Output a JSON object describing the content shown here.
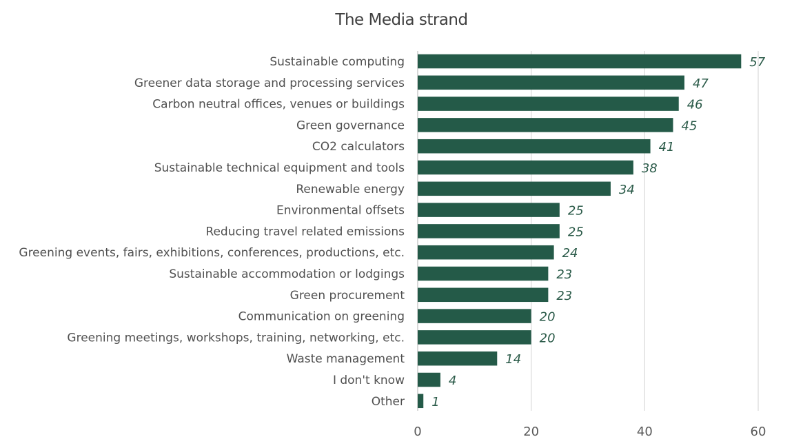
{
  "chart_data": {
    "type": "bar",
    "orientation": "horizontal",
    "title": "The Media strand",
    "xlabel": "",
    "ylabel": "",
    "xlim": [
      0,
      60
    ],
    "xticks": [
      0,
      20,
      40,
      60
    ],
    "grid": true,
    "bar_color": "#245a48",
    "categories": [
      "Sustainable computing",
      "Greener data storage and processing services",
      "Carbon neutral offices, venues or buildings",
      "Green governance",
      "CO2 calculators",
      "Sustainable technical equipment and tools",
      "Renewable energy",
      "Environmental offsets",
      "Reducing travel related emissions",
      "Greening events, fairs, exhibitions, conferences, productions, etc.",
      "Sustainable accommodation or lodgings",
      "Green procurement",
      "Communication on greening",
      "Greening meetings, workshops, training, networking, etc.",
      "Waste management",
      "I don't know",
      "Other"
    ],
    "values": [
      57,
      47,
      46,
      45,
      41,
      38,
      34,
      25,
      25,
      24,
      23,
      23,
      20,
      20,
      14,
      4,
      1
    ]
  }
}
